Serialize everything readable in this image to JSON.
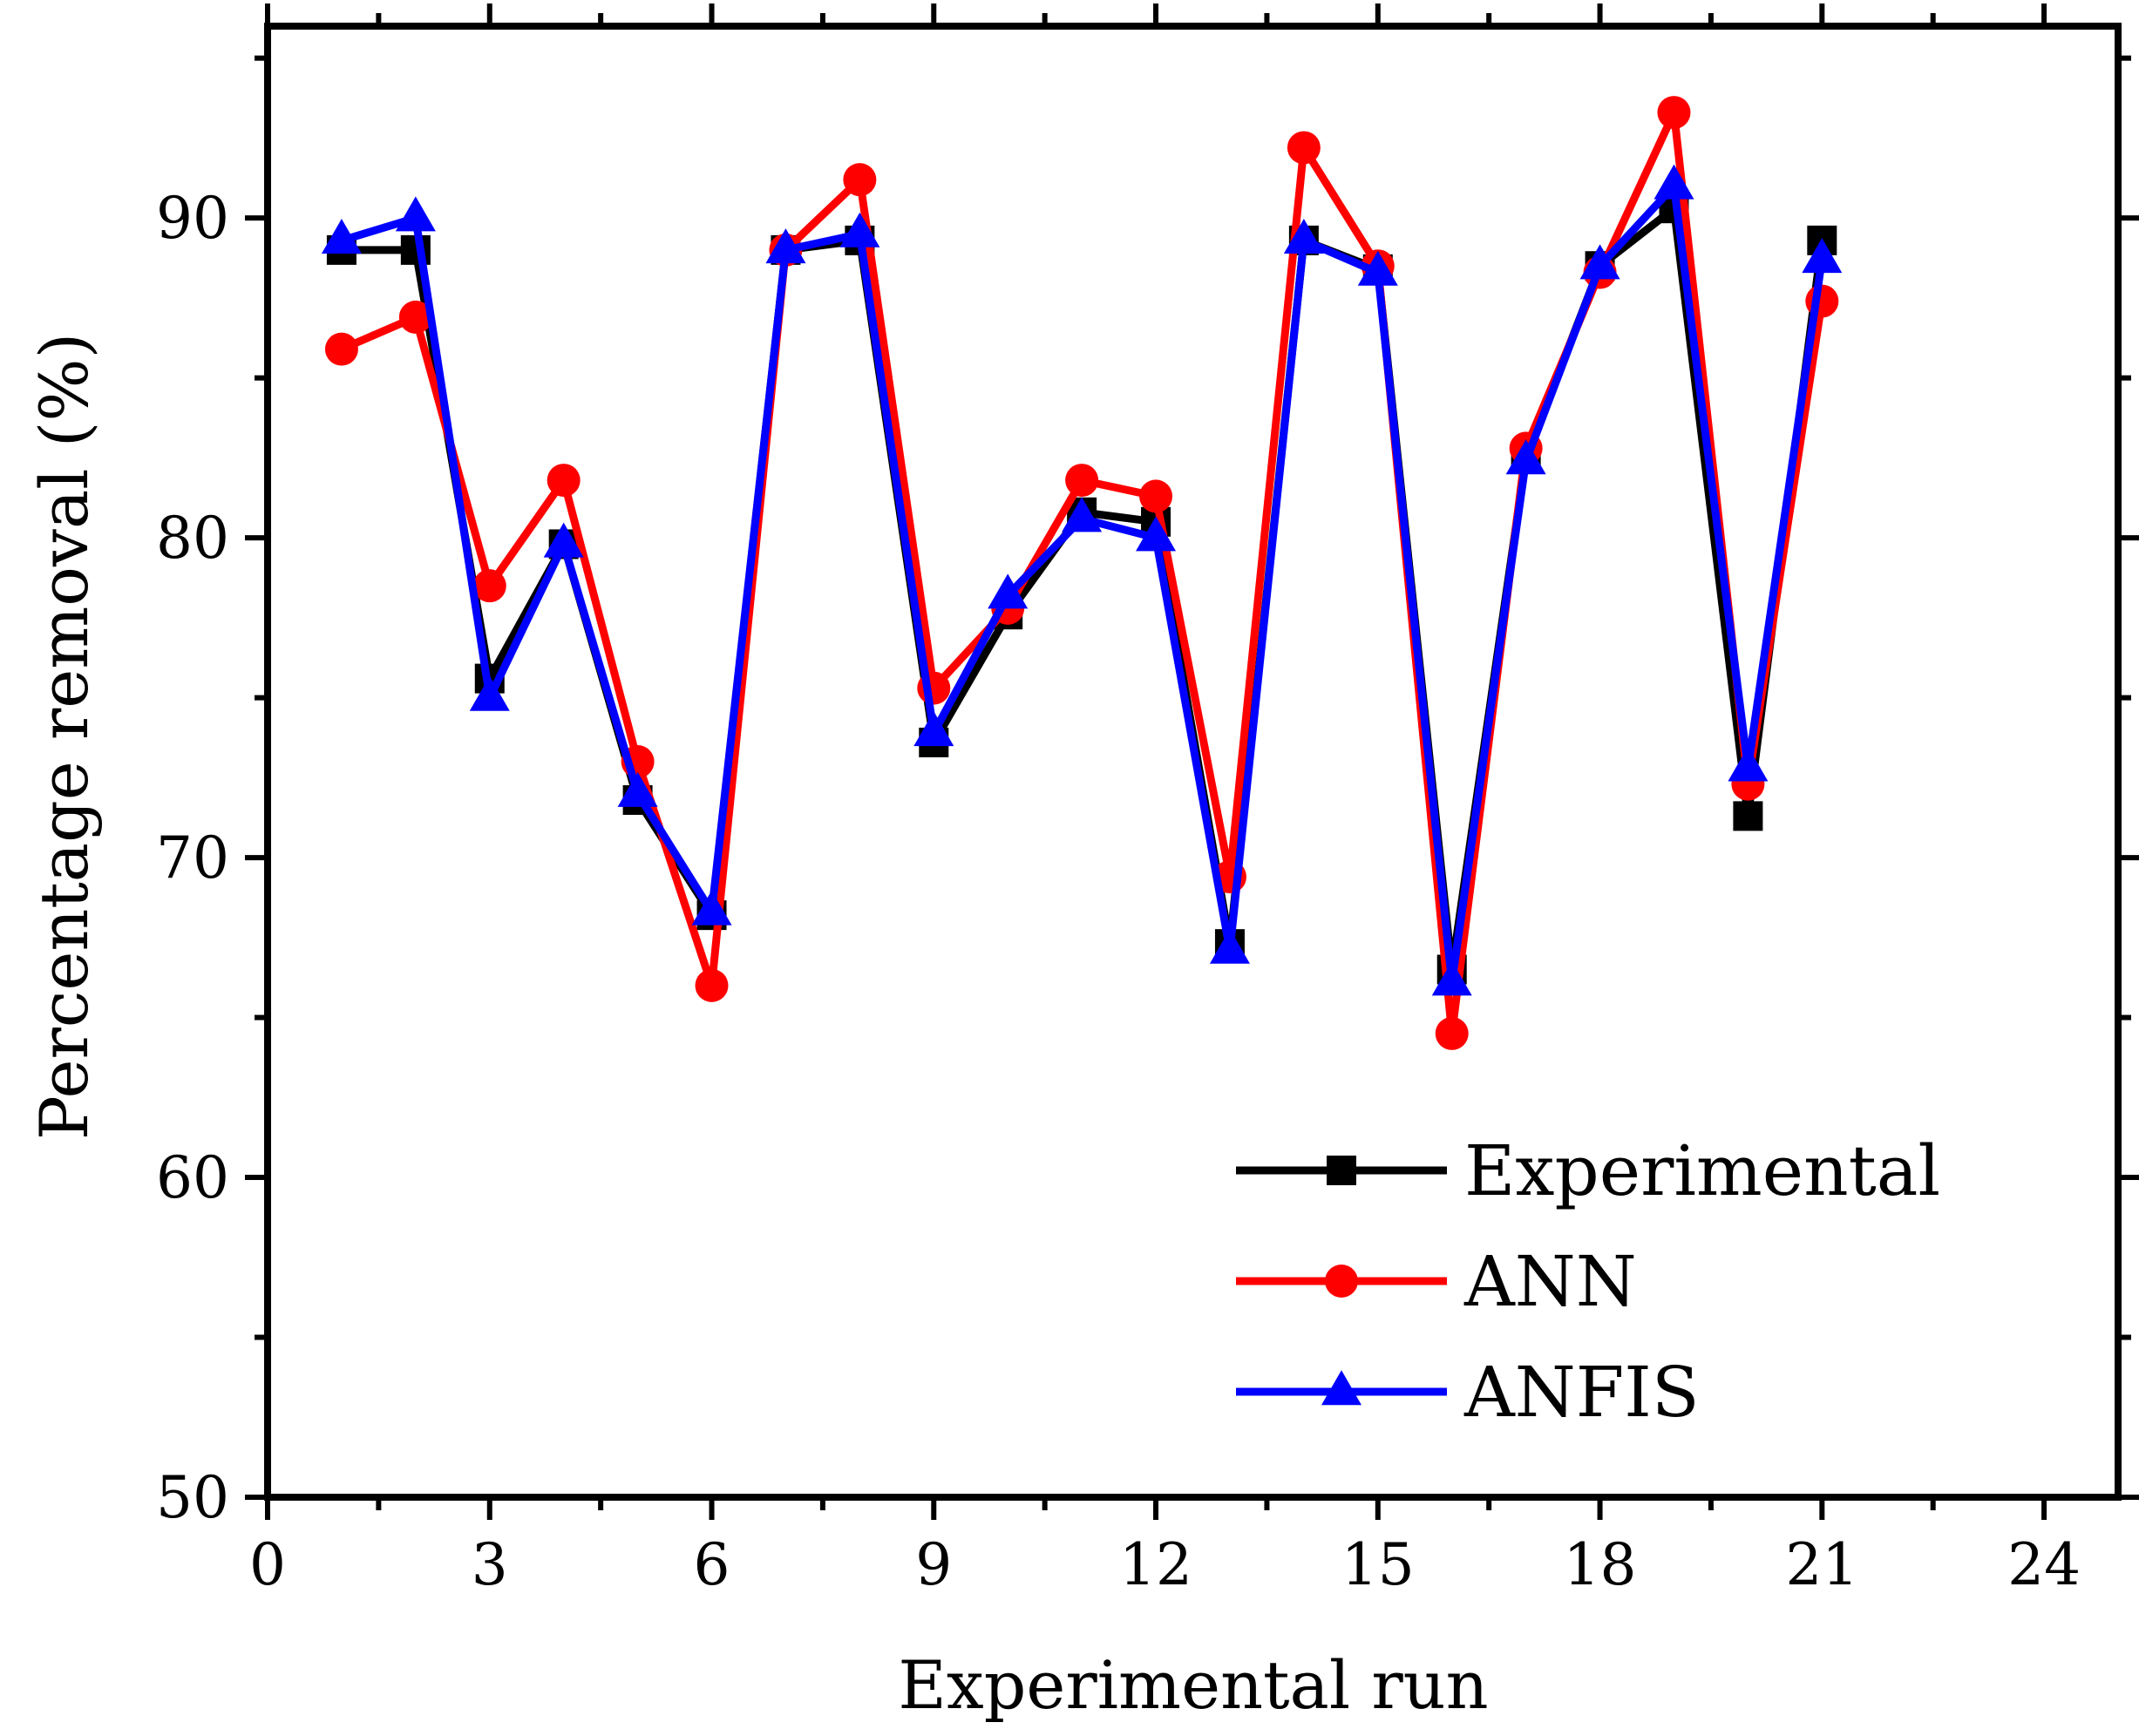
{
  "chart_data": {
    "type": "line",
    "title": "",
    "xlabel": "Experimental run",
    "ylabel": "Percentage removal (%)",
    "xlim": [
      0,
      25
    ],
    "ylim": [
      50,
      96
    ],
    "xticks": [
      0,
      3,
      6,
      9,
      12,
      15,
      18,
      21,
      24
    ],
    "yticks": [
      50,
      60,
      70,
      80,
      90
    ],
    "legend_position": "bottom-right",
    "x": [
      1,
      2,
      3,
      4,
      5,
      6,
      7,
      8,
      9,
      10,
      11,
      12,
      13,
      14,
      15,
      16,
      17,
      18,
      19,
      20,
      21
    ],
    "series": [
      {
        "name": "Experimental",
        "color": "#000000",
        "marker": "square",
        "values": [
          89.0,
          89.0,
          75.6,
          79.8,
          71.8,
          68.2,
          89.0,
          89.3,
          73.6,
          77.6,
          80.8,
          80.5,
          67.3,
          89.3,
          88.4,
          66.5,
          82.5,
          88.5,
          90.3,
          71.3,
          89.3
        ]
      },
      {
        "name": "ANN",
        "color": "#ff0000",
        "marker": "circle",
        "values": [
          85.9,
          86.9,
          78.5,
          81.8,
          73.0,
          66.0,
          89.0,
          91.2,
          75.3,
          77.8,
          81.8,
          81.3,
          69.4,
          92.2,
          88.5,
          64.5,
          82.8,
          88.3,
          93.3,
          72.3,
          87.4
        ]
      },
      {
        "name": "ANFIS",
        "color": "#0000ff",
        "marker": "triangle",
        "values": [
          89.3,
          90.0,
          75.0,
          79.8,
          72.0,
          68.3,
          89.0,
          89.5,
          73.9,
          78.2,
          80.6,
          80.0,
          67.1,
          89.3,
          88.3,
          66.1,
          82.4,
          88.5,
          91.0,
          72.8,
          88.7
        ]
      }
    ]
  }
}
